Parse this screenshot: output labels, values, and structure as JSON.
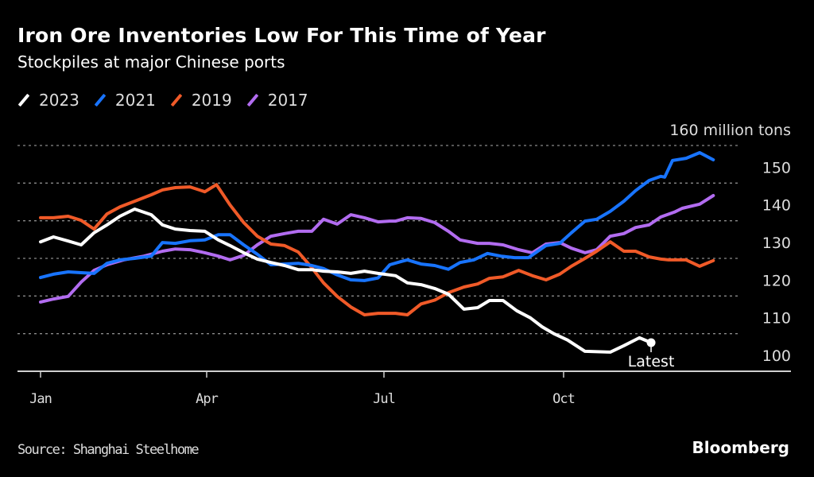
{
  "header": {
    "title": "Iron Ore Inventories Low For This Time of Year",
    "subtitle": "Stockpiles at major Chinese ports"
  },
  "footer": {
    "source": "Source: Shanghai Steelhome",
    "logo": "Bloomberg"
  },
  "chart_data": {
    "type": "line",
    "title": "Iron Ore Inventories Low For This Time of Year",
    "subtitle": "Stockpiles at major Chinese ports",
    "xlabel": "",
    "ylabel": "million tons",
    "x_unit": "day of year",
    "xlim": [
      0,
      365
    ],
    "ylim": [
      100,
      160
    ],
    "yticks": [
      100,
      110,
      120,
      130,
      140,
      150,
      160
    ],
    "ytick_labels": [
      "100",
      "110",
      "120",
      "130",
      "140",
      "150",
      "160 million tons"
    ],
    "xticks": [
      {
        "day": 0,
        "label": "Jan"
      },
      {
        "day": 90,
        "label": "Apr"
      },
      {
        "day": 181,
        "label": "Jul"
      },
      {
        "day": 273,
        "label": "Oct"
      }
    ],
    "grid": true,
    "legend_position": "top-left",
    "annotation": {
      "series": "2023",
      "label": "Latest"
    },
    "series": [
      {
        "name": "2023",
        "color": "#ffffff",
        "points": [
          [
            0,
            134.4
          ],
          [
            7,
            135.7
          ],
          [
            15,
            134.6
          ],
          [
            22,
            133.6
          ],
          [
            29,
            136.8
          ],
          [
            36,
            138.9
          ],
          [
            43,
            141.2
          ],
          [
            51,
            143.1
          ],
          [
            60,
            141.6
          ],
          [
            66,
            138.9
          ],
          [
            73,
            137.8
          ],
          [
            81,
            137.4
          ],
          [
            89,
            137.2
          ],
          [
            96,
            134.9
          ],
          [
            102,
            133.4
          ],
          [
            109,
            131.5
          ],
          [
            116,
            129.8
          ],
          [
            123,
            128.9
          ],
          [
            130,
            128.1
          ],
          [
            137,
            127.0
          ],
          [
            144,
            127.0
          ],
          [
            150,
            126.6
          ],
          [
            157,
            126.4
          ],
          [
            164,
            126.0
          ],
          [
            171,
            126.6
          ],
          [
            178,
            126.0
          ],
          [
            184,
            125.6
          ],
          [
            187,
            125.4
          ],
          [
            193,
            123.5
          ],
          [
            200,
            123.0
          ],
          [
            207,
            122.0
          ],
          [
            214,
            120.5
          ],
          [
            222,
            116.5
          ],
          [
            229,
            116.9
          ],
          [
            235,
            118.8
          ],
          [
            242,
            118.8
          ],
          [
            249,
            116.1
          ],
          [
            256,
            114.2
          ],
          [
            262,
            111.8
          ],
          [
            268,
            110.0
          ],
          [
            275,
            108.3
          ],
          [
            284,
            105.3
          ],
          [
            297,
            105.1
          ],
          [
            304,
            106.8
          ],
          [
            312,
            108.9
          ],
          [
            318,
            107.6
          ]
        ]
      },
      {
        "name": "2021",
        "color": "#1874ff",
        "points": [
          [
            0,
            124.9
          ],
          [
            7,
            125.8
          ],
          [
            15,
            126.4
          ],
          [
            22,
            126.2
          ],
          [
            29,
            126.0
          ],
          [
            36,
            128.7
          ],
          [
            43,
            129.6
          ],
          [
            51,
            130.0
          ],
          [
            60,
            130.6
          ],
          [
            66,
            134.2
          ],
          [
            73,
            134.0
          ],
          [
            81,
            134.7
          ],
          [
            89,
            134.9
          ],
          [
            96,
            136.3
          ],
          [
            102,
            136.3
          ],
          [
            109,
            133.6
          ],
          [
            116,
            131.1
          ],
          [
            123,
            128.3
          ],
          [
            130,
            128.5
          ],
          [
            137,
            128.7
          ],
          [
            144,
            128.1
          ],
          [
            150,
            127.3
          ],
          [
            157,
            125.6
          ],
          [
            164,
            124.3
          ],
          [
            171,
            124.1
          ],
          [
            178,
            124.8
          ],
          [
            184,
            128.3
          ],
          [
            190,
            129.2
          ],
          [
            193,
            129.6
          ],
          [
            200,
            128.5
          ],
          [
            207,
            128.1
          ],
          [
            214,
            127.1
          ],
          [
            220,
            128.9
          ],
          [
            227,
            129.6
          ],
          [
            234,
            131.3
          ],
          [
            241,
            130.6
          ],
          [
            248,
            130.2
          ],
          [
            255,
            130.2
          ],
          [
            264,
            133.4
          ],
          [
            271,
            134.0
          ],
          [
            277,
            136.8
          ],
          [
            284,
            139.9
          ],
          [
            290,
            140.4
          ],
          [
            297,
            142.5
          ],
          [
            304,
            145.2
          ],
          [
            310,
            148.0
          ],
          [
            317,
            150.7
          ],
          [
            323,
            151.8
          ],
          [
            325,
            151.6
          ],
          [
            329,
            156.0
          ],
          [
            336,
            156.6
          ],
          [
            343,
            158.1
          ],
          [
            350,
            156.2
          ]
        ]
      },
      {
        "name": "2019",
        "color": "#f05a28",
        "points": [
          [
            0,
            140.8
          ],
          [
            7,
            140.8
          ],
          [
            15,
            141.2
          ],
          [
            22,
            140.1
          ],
          [
            29,
            137.8
          ],
          [
            36,
            141.8
          ],
          [
            43,
            143.7
          ],
          [
            51,
            145.2
          ],
          [
            60,
            146.9
          ],
          [
            66,
            148.2
          ],
          [
            73,
            148.8
          ],
          [
            81,
            149.0
          ],
          [
            89,
            147.7
          ],
          [
            95,
            149.6
          ],
          [
            102,
            144.2
          ],
          [
            109,
            139.5
          ],
          [
            116,
            135.9
          ],
          [
            123,
            133.8
          ],
          [
            130,
            133.4
          ],
          [
            137,
            131.7
          ],
          [
            144,
            127.5
          ],
          [
            150,
            123.5
          ],
          [
            157,
            119.9
          ],
          [
            164,
            117.1
          ],
          [
            171,
            115.0
          ],
          [
            178,
            115.4
          ],
          [
            187,
            115.4
          ],
          [
            193,
            115.0
          ],
          [
            200,
            117.9
          ],
          [
            207,
            118.9
          ],
          [
            214,
            120.9
          ],
          [
            222,
            122.4
          ],
          [
            229,
            123.2
          ],
          [
            235,
            124.7
          ],
          [
            242,
            125.1
          ],
          [
            250,
            126.8
          ],
          [
            257,
            125.4
          ],
          [
            264,
            124.3
          ],
          [
            271,
            125.8
          ],
          [
            277,
            127.9
          ],
          [
            284,
            130.0
          ],
          [
            290,
            131.9
          ],
          [
            297,
            134.4
          ],
          [
            304,
            131.9
          ],
          [
            310,
            131.9
          ],
          [
            317,
            130.4
          ],
          [
            323,
            129.8
          ],
          [
            327,
            129.6
          ],
          [
            336,
            129.6
          ],
          [
            343,
            127.9
          ],
          [
            350,
            129.4
          ]
        ]
      },
      {
        "name": "2017",
        "color": "#b26cf0",
        "points": [
          [
            0,
            118.4
          ],
          [
            7,
            119.2
          ],
          [
            15,
            119.9
          ],
          [
            22,
            123.7
          ],
          [
            29,
            126.8
          ],
          [
            36,
            128.3
          ],
          [
            45,
            129.6
          ],
          [
            56,
            130.6
          ],
          [
            66,
            131.9
          ],
          [
            73,
            132.5
          ],
          [
            81,
            132.3
          ],
          [
            89,
            131.5
          ],
          [
            96,
            130.6
          ],
          [
            102,
            129.6
          ],
          [
            109,
            130.8
          ],
          [
            116,
            133.6
          ],
          [
            123,
            135.9
          ],
          [
            130,
            136.6
          ],
          [
            137,
            137.2
          ],
          [
            144,
            137.2
          ],
          [
            150,
            140.4
          ],
          [
            157,
            139.1
          ],
          [
            164,
            141.6
          ],
          [
            171,
            140.8
          ],
          [
            178,
            139.7
          ],
          [
            184,
            139.9
          ],
          [
            187,
            139.9
          ],
          [
            193,
            140.8
          ],
          [
            200,
            140.6
          ],
          [
            207,
            139.5
          ],
          [
            214,
            137.2
          ],
          [
            220,
            134.9
          ],
          [
            229,
            134.0
          ],
          [
            235,
            134.0
          ],
          [
            242,
            133.6
          ],
          [
            250,
            132.3
          ],
          [
            257,
            131.5
          ],
          [
            264,
            133.8
          ],
          [
            271,
            134.2
          ],
          [
            277,
            132.7
          ],
          [
            284,
            131.5
          ],
          [
            290,
            132.3
          ],
          [
            297,
            135.9
          ],
          [
            304,
            136.6
          ],
          [
            310,
            138.2
          ],
          [
            317,
            138.9
          ],
          [
            323,
            141.0
          ],
          [
            330,
            142.3
          ],
          [
            334,
            143.3
          ],
          [
            343,
            144.4
          ],
          [
            350,
            146.7
          ]
        ]
      }
    ]
  }
}
